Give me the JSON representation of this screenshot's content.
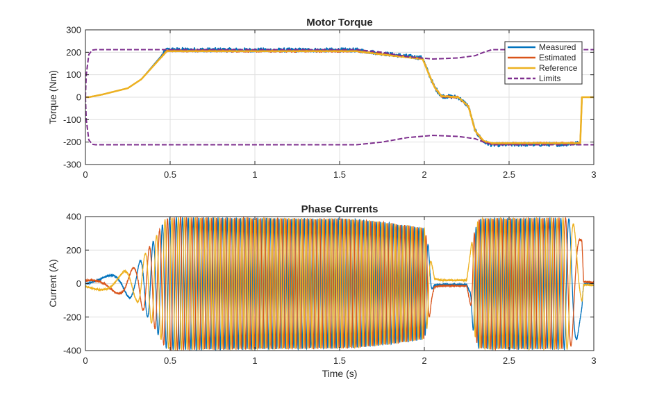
{
  "colors": {
    "measured": "#0072BD",
    "estimated": "#D95319",
    "reference": "#EDB120",
    "limits": "#7E2F8E",
    "grid": "#dfdfdf",
    "axis": "#262626"
  },
  "chart_data": [
    {
      "type": "line",
      "title": "Motor Torque",
      "xlabel": "",
      "ylabel": "Torque (Nm)",
      "xlim": [
        0,
        3
      ],
      "ylim": [
        -300,
        300
      ],
      "xticks": [
        0,
        0.5,
        1,
        1.5,
        2,
        2.5,
        3
      ],
      "xtick_labels": [
        "0",
        "0.5",
        "1",
        "1.5",
        "2",
        "2.5",
        "3"
      ],
      "yticks": [
        -300,
        -200,
        -100,
        0,
        100,
        200,
        300
      ],
      "ytick_labels": [
        "-300",
        "-200",
        "-100",
        "0",
        "100",
        "200",
        "300"
      ],
      "grid": true,
      "legend": "top-right",
      "series": [
        {
          "name": "Measured",
          "style": "solid",
          "x": [
            0,
            0.02,
            0.1,
            0.25,
            0.33,
            0.48,
            1.0,
            1.6,
            1.75,
            1.99,
            2.02,
            2.06,
            2.1,
            2.2,
            2.26,
            2.3,
            2.35,
            2.4,
            2.6,
            2.8,
            2.92,
            2.93,
            2.94,
            3.0
          ],
          "y": [
            0,
            0,
            12,
            40,
            80,
            212,
            210,
            210,
            195,
            175,
            115,
            45,
            5,
            0,
            -40,
            -150,
            -200,
            -212,
            -210,
            -210,
            -205,
            0,
            0,
            0
          ],
          "noise": 9
        },
        {
          "name": "Estimated",
          "style": "solid",
          "x": [
            0,
            0.02,
            0.1,
            0.25,
            0.33,
            0.48,
            1.0,
            1.6,
            1.75,
            1.99,
            2.02,
            2.06,
            2.1,
            2.2,
            2.26,
            2.3,
            2.35,
            2.4,
            2.6,
            2.8,
            2.92,
            2.93,
            2.94,
            3.0
          ],
          "y": [
            0,
            0,
            12,
            40,
            80,
            207,
            205,
            205,
            192,
            172,
            115,
            45,
            5,
            0,
            -40,
            -150,
            -198,
            -207,
            -205,
            -205,
            -203,
            0,
            0,
            0
          ],
          "noise": 4
        },
        {
          "name": "Reference",
          "style": "solid",
          "x": [
            0,
            0.02,
            0.1,
            0.25,
            0.33,
            0.48,
            1.0,
            1.6,
            1.75,
            1.99,
            2.02,
            2.06,
            2.1,
            2.2,
            2.26,
            2.3,
            2.35,
            2.4,
            2.6,
            2.8,
            2.92,
            2.93,
            2.94,
            3.0
          ],
          "y": [
            0,
            0,
            12,
            40,
            80,
            205,
            205,
            205,
            190,
            170,
            115,
            45,
            5,
            0,
            -40,
            -150,
            -195,
            -205,
            -205,
            -205,
            -205,
            0,
            0,
            0
          ],
          "noise": 0
        },
        {
          "name": "Limits",
          "style": "dashed",
          "x": [
            0,
            0.005,
            0.02,
            0.04,
            0.06,
            0.5,
            1.6,
            1.75,
            1.9,
            2.05,
            2.2,
            2.3,
            2.35,
            2.4,
            3.0
          ],
          "y": [
            0,
            100,
            190,
            210,
            212,
            212,
            212,
            200,
            180,
            170,
            175,
            185,
            200,
            212,
            212
          ],
          "mirror": true
        }
      ]
    },
    {
      "type": "line",
      "title": "Phase Currents",
      "xlabel": "Time (s)",
      "ylabel": "Current (A)",
      "xlim": [
        0,
        3
      ],
      "ylim": [
        -400,
        400
      ],
      "xticks": [
        0,
        0.5,
        1,
        1.5,
        2,
        2.5,
        3
      ],
      "xtick_labels": [
        "0",
        "0.5",
        "1",
        "1.5",
        "2",
        "2.5",
        "3"
      ],
      "yticks": [
        -400,
        -200,
        0,
        200,
        400
      ],
      "ytick_labels": [
        "-400",
        "-200",
        "0",
        "200",
        "400"
      ],
      "grid": true,
      "series": [
        {
          "phase_deg": 0
        },
        {
          "phase_deg": 120
        },
        {
          "phase_deg": 240
        }
      ],
      "amplitude_envelope": {
        "t": [
          0,
          0.02,
          0.1,
          0.2,
          0.3,
          0.4,
          0.47,
          0.5,
          1.0,
          1.5,
          1.62,
          1.8,
          2.0,
          2.03,
          2.06,
          2.1,
          2.25,
          2.28,
          2.32,
          2.4,
          2.6,
          2.85,
          2.9,
          2.93,
          2.94,
          3.0
        ],
        "a": [
          20,
          25,
          40,
          60,
          100,
          250,
          380,
          395,
          390,
          385,
          380,
          360,
          330,
          200,
          30,
          20,
          20,
          250,
          385,
          390,
          390,
          390,
          330,
          250,
          10,
          10
        ]
      },
      "frequency_profile": {
        "t": [
          0,
          0.1,
          0.2,
          0.3,
          0.4,
          0.5,
          0.7,
          1.0,
          2.0,
          2.05,
          2.27,
          2.3,
          2.5,
          2.8,
          2.85,
          2.92,
          3.0
        ],
        "f": [
          1,
          2,
          4,
          8,
          16,
          25,
          35,
          40,
          40,
          0,
          0,
          35,
          40,
          30,
          15,
          4,
          0
        ]
      },
      "clip": 395
    }
  ]
}
